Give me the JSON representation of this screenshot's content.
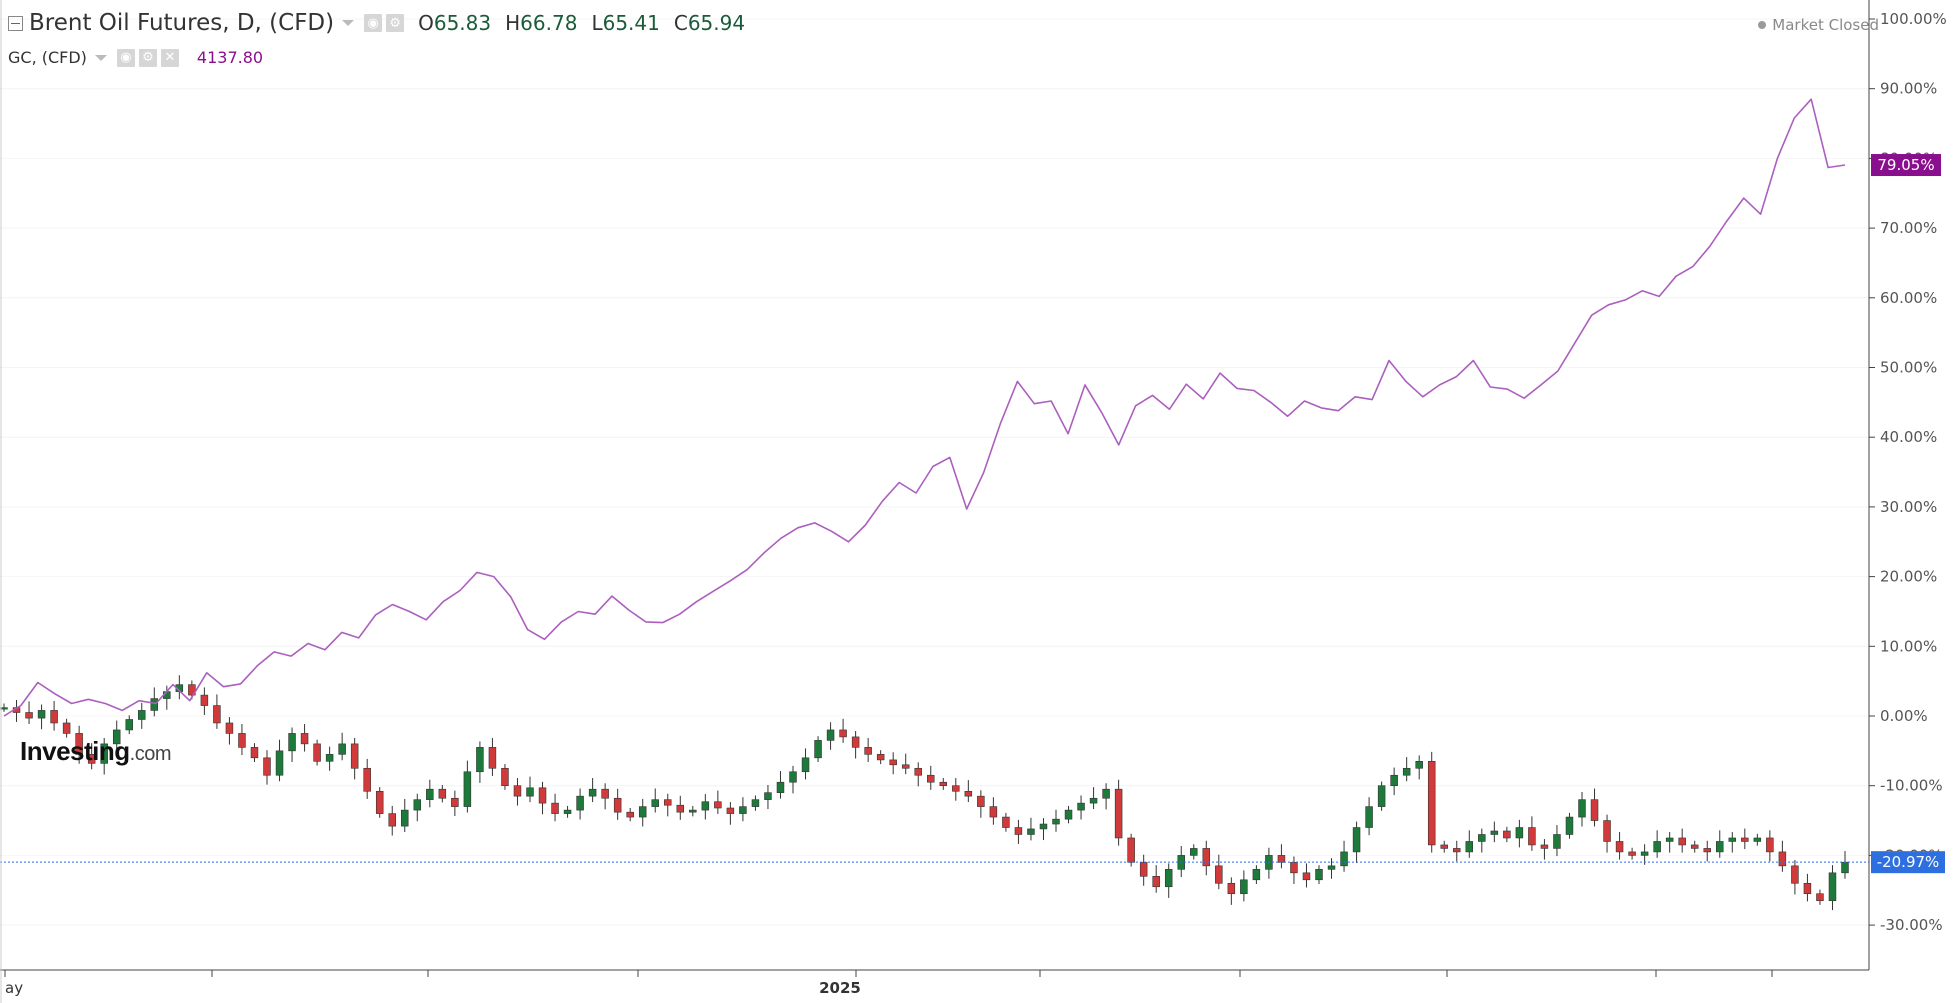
{
  "header": {
    "main_symbol": "Brent Oil Futures, D, (CFD)",
    "ohlc": {
      "open_key": "O",
      "open": "65.83",
      "high_key": "H",
      "high": "66.78",
      "low_key": "L",
      "low": "65.41",
      "close_key": "C",
      "close": "65.94"
    },
    "compare_symbol": "GC, (CFD)",
    "compare_price": "4137.80",
    "market_status": "Market Closed"
  },
  "logo": {
    "brand": "Investing",
    "suffix": ".com"
  },
  "colors": {
    "gold_line": "#ab5fbf",
    "gold_label": "#8a0f8e",
    "brent_label": "#2e6fe0",
    "candle_up": "#1d7a3a",
    "candle_down": "#d13a3a",
    "ohlc_value": "#1c5b3a",
    "axis": "#555555"
  },
  "chart_data": {
    "type": "line",
    "scale": "percent change",
    "ylim": [
      -38,
      101
    ],
    "y_ticks": [
      "100.00%",
      "90.00%",
      "80.00%",
      "70.00%",
      "60.00%",
      "50.00%",
      "40.00%",
      "30.00%",
      "20.00%",
      "10.00%",
      "0.00%",
      "-10.00%",
      "-20.00%",
      "-30.00%"
    ],
    "x_tick_labels": [
      "ay",
      "2025"
    ],
    "last_values": {
      "gold": "79.05%",
      "brent": "-20.97%"
    },
    "series": [
      {
        "name": "GC, (CFD)",
        "style": "line",
        "pct": [
          0,
          1.5,
          4.8,
          3.2,
          1.8,
          2.4,
          1.8,
          0.8,
          2.2,
          1.8,
          4.5,
          2.2,
          6.2,
          4.2,
          4.6,
          7.2,
          9.2,
          8.6,
          10.4,
          9.5,
          12.0,
          11.2,
          14.5,
          16.0,
          15.0,
          13.8,
          16.4,
          18.0,
          20.6,
          20.0,
          17.1,
          12.4,
          11.0,
          13.5,
          15.0,
          14.6,
          17.2,
          15.2,
          13.5,
          13.4,
          14.6,
          16.4,
          17.9,
          19.4,
          21.0,
          23.4,
          25.5,
          27.0,
          27.7,
          26.5,
          25.0,
          27.4,
          30.8,
          33.5,
          32.0,
          35.8,
          37.1,
          29.7,
          34.9,
          42.0,
          48.0,
          44.8,
          45.2,
          40.5,
          47.5,
          43.5,
          38.9,
          44.5,
          46.0,
          44.0,
          47.6,
          45.5,
          49.2,
          47.0,
          46.7,
          45.0,
          43.0,
          45.2,
          44.2,
          43.8,
          45.8,
          45.4,
          51.0,
          48.0,
          45.8,
          47.5,
          48.7,
          51.0,
          47.2,
          46.9,
          45.6,
          47.5,
          49.5,
          53.5,
          57.5,
          59.0,
          59.7,
          61.0,
          60.2,
          63.1,
          64.5,
          67.4,
          71.0,
          74.3,
          72.0,
          80.0,
          85.8,
          88.5,
          78.7,
          79.05
        ]
      },
      {
        "name": "Brent Oil Futures, D, (CFD)",
        "style": "candlestick",
        "pct": [
          1.2,
          0.5,
          -0.3,
          0.8,
          -1.0,
          -2.5,
          -5.5,
          -6.8,
          -4.0,
          -2.0,
          -0.5,
          0.8,
          2.5,
          3.5,
          4.5,
          3.0,
          1.5,
          -1.0,
          -2.5,
          -4.5,
          -6.0,
          -8.5,
          -5.0,
          -2.5,
          -4.0,
          -6.5,
          -5.5,
          -4.0,
          -7.5,
          -10.8,
          -14.0,
          -15.8,
          -13.5,
          -12.0,
          -10.5,
          -11.8,
          -13.0,
          -8.0,
          -4.5,
          -7.5,
          -10.0,
          -11.5,
          -10.3,
          -12.5,
          -14.0,
          -13.5,
          -11.5,
          -10.5,
          -11.8,
          -13.8,
          -14.5,
          -13.0,
          -12.0,
          -12.8,
          -13.8,
          -13.5,
          -12.3,
          -13.2,
          -14.0,
          -13.0,
          -12.0,
          -11.0,
          -9.5,
          -8.0,
          -6.0,
          -3.5,
          -2.0,
          -3.0,
          -4.5,
          -5.5,
          -6.3,
          -7.0,
          -7.5,
          -8.5,
          -9.5,
          -10.0,
          -10.8,
          -11.5,
          -13.0,
          -14.5,
          -16.0,
          -17.0,
          -16.2,
          -15.5,
          -14.8,
          -13.5,
          -12.5,
          -11.8,
          -10.5,
          -17.5,
          -21.0,
          -23.0,
          -24.5,
          -22.0,
          -20.0,
          -19.0,
          -21.5,
          -24.0,
          -25.5,
          -23.5,
          -22.0,
          -20.0,
          -21.0,
          -22.5,
          -23.5,
          -22.0,
          -21.5,
          -19.5,
          -16.0,
          -13.0,
          -10.0,
          -8.5,
          -7.5,
          -6.5,
          -18.5,
          -19.0,
          -19.5,
          -18.0,
          -17.0,
          -16.5,
          -17.5,
          -16.0,
          -18.5,
          -19.0,
          -17.0,
          -14.5,
          -12.0,
          -15.0,
          -18.0,
          -19.5,
          -20.0,
          -19.5,
          -18.0,
          -17.5,
          -18.5,
          -19.0,
          -19.5,
          -18.0,
          -17.5,
          -18.0,
          -17.5,
          -19.5,
          -21.5,
          -24.0,
          -25.5,
          -26.5,
          -22.5,
          -20.97
        ]
      }
    ]
  }
}
